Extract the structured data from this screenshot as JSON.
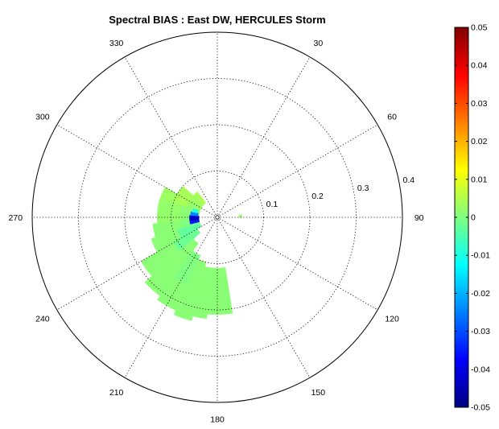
{
  "chart_data": {
    "type": "heatmap",
    "projection": "polar",
    "title": "Spectral BIAS : East DW, HERCULES Storm",
    "angle_direction": "clockwise, 0 at top",
    "angle_ticks": [
      "0",
      "30",
      "60",
      "90",
      "120",
      "150",
      "180",
      "210",
      "240",
      "270",
      "300",
      "330"
    ],
    "angle_labels_shown": [
      "30",
      "60",
      "90",
      "120",
      "150",
      "180",
      "210",
      "240",
      "270",
      "300",
      "330"
    ],
    "radial_ticks": [
      0.1,
      0.2,
      0.3,
      0.4
    ],
    "radial_tick_labels": [
      "0.1",
      "0.2",
      "0.3",
      "0.4"
    ],
    "radial_max": 0.4,
    "grid": true,
    "colorbar": {
      "colormap": "jet",
      "range": [
        -0.05,
        0.05
      ],
      "ticks": [
        0.05,
        0.04,
        0.03,
        0.02,
        0.01,
        0,
        -0.01,
        -0.02,
        -0.03,
        -0.04,
        -0.05
      ],
      "tick_labels": [
        "0.05",
        "0.04",
        "0.03",
        "0.02",
        "0.01",
        "0",
        "-0.01",
        "-0.02",
        "-0.03",
        "-0.04",
        "-0.05"
      ],
      "placement": "right"
    },
    "background_value": 0,
    "cells": [
      {
        "theta": [
          288,
          300
        ],
        "r": [
          0.04,
          0.07
        ],
        "value": 0.002
      },
      {
        "theta": [
          288,
          300
        ],
        "r": [
          0.07,
          0.1
        ],
        "value": 0.004
      },
      {
        "theta": [
          288,
          300
        ],
        "r": [
          0.1,
          0.13
        ],
        "value": 0.003
      },
      {
        "theta": [
          300,
          312
        ],
        "r": [
          0.04,
          0.07
        ],
        "value": 0.003
      },
      {
        "theta": [
          300,
          312
        ],
        "r": [
          0.07,
          0.1
        ],
        "value": 0.004
      },
      {
        "theta": [
          312,
          322
        ],
        "r": [
          0.04,
          0.07
        ],
        "value": 0.004
      },
      {
        "theta": [
          276,
          288
        ],
        "r": [
          0.04,
          0.08
        ],
        "value": 0.001
      },
      {
        "theta": [
          276,
          288
        ],
        "r": [
          0.08,
          0.13
        ],
        "value": 0.002
      },
      {
        "theta": [
          264,
          276
        ],
        "r": [
          0.04,
          0.08
        ],
        "value": 0.001
      },
      {
        "theta": [
          264,
          276
        ],
        "r": [
          0.08,
          0.13
        ],
        "value": 0.002
      },
      {
        "theta": [
          252,
          264
        ],
        "r": [
          0.04,
          0.08
        ],
        "value": 0.0
      },
      {
        "theta": [
          252,
          264
        ],
        "r": [
          0.08,
          0.14
        ],
        "value": 0.001
      },
      {
        "theta": [
          240,
          252
        ],
        "r": [
          0.04,
          0.09
        ],
        "value": -0.003
      },
      {
        "theta": [
          240,
          252
        ],
        "r": [
          0.09,
          0.15
        ],
        "value": 0.001
      },
      {
        "theta": [
          228,
          240
        ],
        "r": [
          0.05,
          0.11
        ],
        "value": -0.002
      },
      {
        "theta": [
          228,
          240
        ],
        "r": [
          0.11,
          0.19
        ],
        "value": 0.001
      },
      {
        "theta": [
          216,
          228
        ],
        "r": [
          0.07,
          0.14
        ],
        "value": 0.001
      },
      {
        "theta": [
          216,
          228
        ],
        "r": [
          0.14,
          0.21
        ],
        "value": 0.001
      },
      {
        "theta": [
          204,
          216
        ],
        "r": [
          0.09,
          0.16
        ],
        "value": 0.0
      },
      {
        "theta": [
          204,
          216
        ],
        "r": [
          0.16,
          0.22
        ],
        "value": 0.001
      },
      {
        "theta": [
          194,
          204
        ],
        "r": [
          0.1,
          0.17
        ],
        "value": 0.001
      },
      {
        "theta": [
          194,
          204
        ],
        "r": [
          0.17,
          0.23
        ],
        "value": 0.001
      },
      {
        "theta": [
          186,
          194
        ],
        "r": [
          0.11,
          0.22
        ],
        "value": 0.001
      },
      {
        "theta": [
          171,
          186
        ],
        "r": [
          0.11,
          0.21
        ],
        "value": 0.001
      },
      {
        "theta": [
          262,
          268
        ],
        "r": [
          0.04,
          0.045
        ],
        "value": -0.05
      },
      {
        "theta": [
          262,
          268
        ],
        "r": [
          0.045,
          0.06
        ],
        "value": -0.045
      },
      {
        "theta": [
          268,
          274
        ],
        "r": [
          0.04,
          0.06
        ],
        "value": -0.04
      },
      {
        "theta": [
          256,
          262
        ],
        "r": [
          0.04,
          0.06
        ],
        "value": -0.035
      },
      {
        "theta": [
          274,
          282
        ],
        "r": [
          0.042,
          0.058
        ],
        "value": -0.025
      },
      {
        "theta": [
          282,
          290
        ],
        "r": [
          0.045,
          0.055
        ],
        "value": -0.01
      },
      {
        "theta": [
          84,
          90
        ],
        "r": [
          0.047,
          0.053
        ],
        "value": 0.002
      }
    ]
  }
}
